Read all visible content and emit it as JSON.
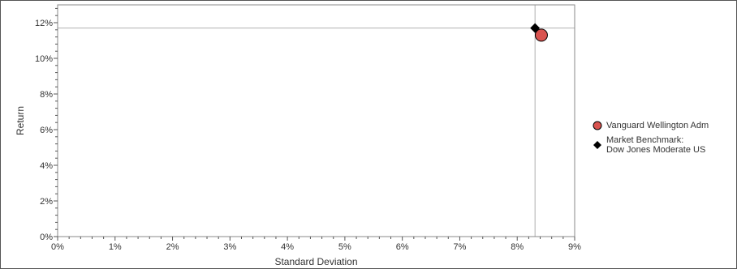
{
  "chart_data": {
    "type": "scatter",
    "title": "",
    "xlabel": "Standard Deviation",
    "ylabel": "Return",
    "xlim": [
      0,
      9
    ],
    "ylim": [
      0,
      13
    ],
    "x_ticks": [
      0,
      1,
      2,
      3,
      4,
      5,
      6,
      7,
      8,
      9
    ],
    "x_tick_labels": [
      "0%",
      "1%",
      "2%",
      "3%",
      "4%",
      "5%",
      "6%",
      "7%",
      "8%",
      "9%"
    ],
    "y_ticks": [
      0,
      2,
      4,
      6,
      8,
      10,
      12
    ],
    "y_tick_labels": [
      "0%",
      "2%",
      "4%",
      "6%",
      "8%",
      "10%",
      "12%"
    ],
    "grid": false,
    "legend_position": "right",
    "crosshair": {
      "x": 8.31,
      "y": 11.7
    },
    "series": [
      {
        "name": "Vanguard Wellington Adm",
        "marker": "circle",
        "color": "#d9534f",
        "x": [
          8.42
        ],
        "y": [
          11.3
        ]
      },
      {
        "name": "Market Benchmark:\nDow Jones Moderate US",
        "marker": "diamond",
        "color": "#000000",
        "x": [
          8.31
        ],
        "y": [
          11.7
        ]
      }
    ]
  }
}
